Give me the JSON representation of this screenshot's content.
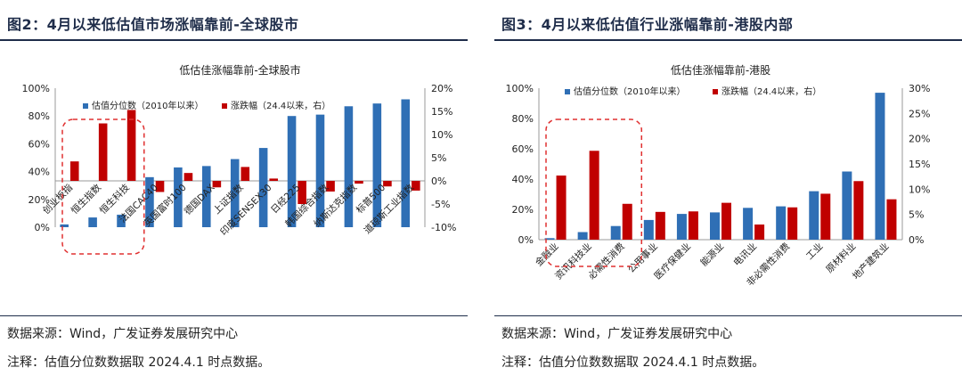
{
  "left_panel": {
    "figure_title": "图2：4月以来低估值市场涨幅靠前-全球股市",
    "source": "数据来源：Wind，广发证券发展研究中心",
    "note": "注释：估值分位数数据取 2024.4.1 时点数据。"
  },
  "right_panel": {
    "figure_title": "图3：4月以来低估值行业涨幅靠前-港股内部",
    "source": "数据来源：Wind，广发证券发展研究中心",
    "note": "注释：估值分位数数据取 2024.4.1 时点数据。"
  },
  "colors": {
    "valuation": "#2f6fb5",
    "change": "#c00000",
    "highlight": "#e03030",
    "title": "#1f2d4a"
  },
  "chart_data": [
    {
      "type": "bar",
      "title": "低估佳涨幅靠前-全球股市",
      "categories": [
        "创业板指",
        "恒生指数",
        "恒生科技",
        "法国CAC40",
        "英国富时100",
        "德国DAX",
        "上证指数",
        "印度SENSEX30",
        "日经225",
        "韩国综合指数",
        "纳斯达克指数",
        "标普500",
        "道琼斯工业指数"
      ],
      "series": [
        {
          "name": "估值分位数（2010年以来）",
          "axis": "left",
          "values": [
            2,
            7,
            9,
            36,
            43,
            44,
            49,
            57,
            80,
            81,
            87,
            89,
            92
          ]
        },
        {
          "name": "涨跌幅（24.4以来，右）",
          "axis": "right",
          "values": [
            4.2,
            12.4,
            15.3,
            -2.4,
            1.7,
            -1.4,
            3.0,
            0.5,
            -5.0,
            -2.3,
            -0.6,
            -1.2,
            -2.1
          ]
        }
      ],
      "left_axis": {
        "range": [
          0,
          100
        ],
        "ticks": [
          "0%",
          "20%",
          "40%",
          "60%",
          "80%",
          "100%"
        ]
      },
      "right_axis": {
        "range": [
          -10,
          20
        ],
        "ticks": [
          "-10%",
          "-5%",
          "0%",
          "5%",
          "10%",
          "15%",
          "20%"
        ]
      },
      "highlight_count": 3
    },
    {
      "type": "bar",
      "title": "低估佳涨幅靠前-港股",
      "categories": [
        "金融业",
        "资讯科技业",
        "必需性消费",
        "公用事业",
        "医疗保健业",
        "能源业",
        "电讯业",
        "非必需性消费",
        "工业",
        "原材料业",
        "地产建筑业"
      ],
      "series": [
        {
          "name": "估值分位数（2010年以来）",
          "axis": "left",
          "values": [
            1,
            5,
            9,
            13,
            17,
            18,
            21,
            22,
            32,
            45,
            97
          ]
        },
        {
          "name": "涨跌幅（24.4以来，右）",
          "axis": "right",
          "values": [
            12.7,
            17.6,
            7.1,
            5.5,
            5.6,
            7.3,
            3.0,
            6.4,
            9.1,
            11.6,
            8.0
          ]
        }
      ],
      "left_axis": {
        "range": [
          0,
          100
        ],
        "ticks": [
          "0%",
          "20%",
          "40%",
          "60%",
          "80%",
          "100%"
        ]
      },
      "right_axis": {
        "range": [
          0,
          30
        ],
        "ticks": [
          "0%",
          "5%",
          "10%",
          "15%",
          "20%",
          "25%",
          "30%"
        ]
      },
      "highlight_count": 3
    }
  ]
}
